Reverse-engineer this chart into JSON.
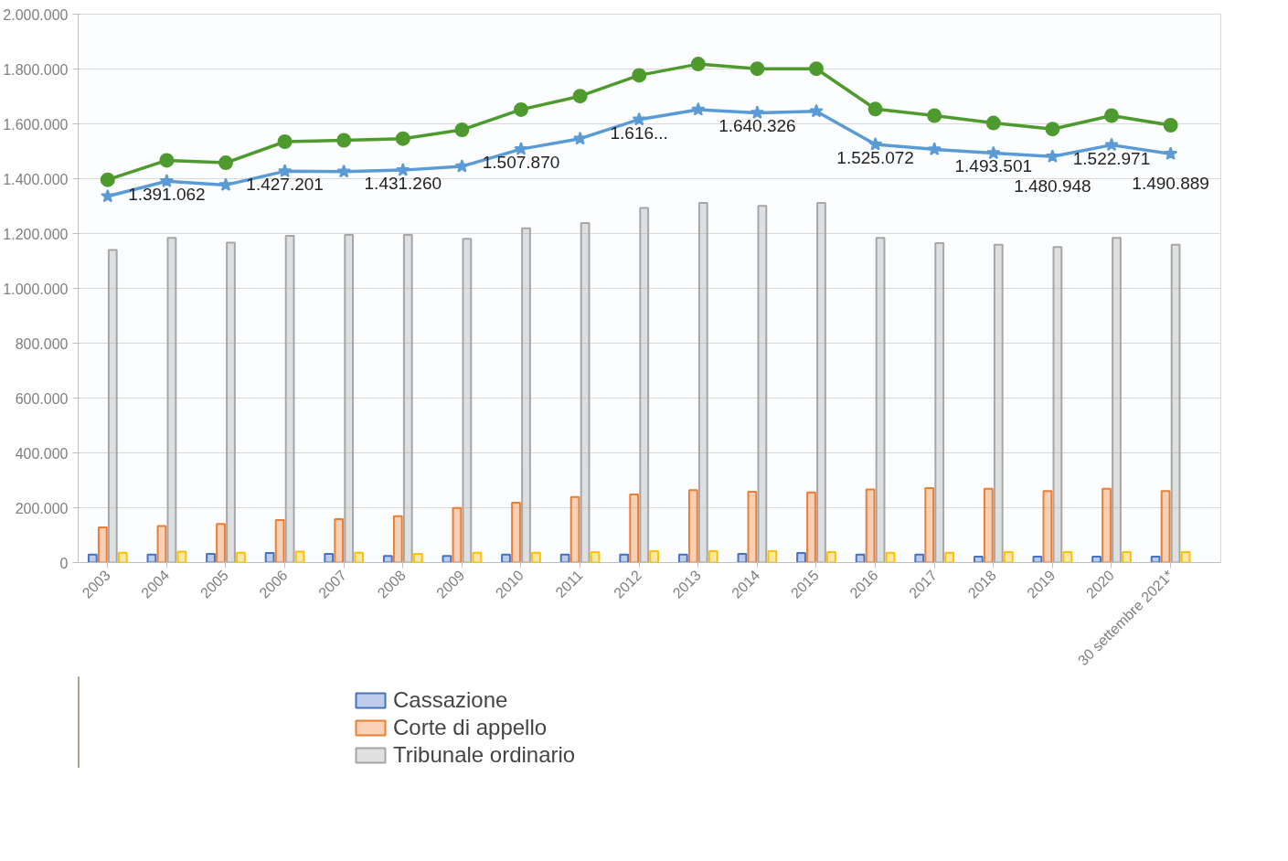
{
  "chart_data": {
    "type": "bar",
    "categories": [
      "2003",
      "2004",
      "2005",
      "2006",
      "2007",
      "2008",
      "2009",
      "2010",
      "2011",
      "2012",
      "2013",
      "2014",
      "2015",
      "2016",
      "2017",
      "2018",
      "2019",
      "2020",
      "30 settembre 2021*"
    ],
    "series": [
      {
        "name": "Cassazione",
        "color": "#4472c4",
        "values": [
          29000,
          29000,
          32000,
          35000,
          32000,
          24000,
          24000,
          29000,
          29000,
          29000,
          29000,
          32000,
          35000,
          29000,
          29000,
          22000,
          22000,
          22000,
          22000
        ]
      },
      {
        "name": "Corte di appello",
        "color": "#ed7d31",
        "values": [
          128000,
          133000,
          141000,
          155000,
          158000,
          169000,
          199000,
          218000,
          239000,
          248000,
          264000,
          258000,
          256000,
          267000,
          272000,
          269000,
          261000,
          269000,
          261000
        ]
      },
      {
        "name": "Tribunale ordinario",
        "color": "#a6a6a6",
        "values": [
          1140000,
          1184000,
          1167000,
          1192000,
          1195000,
          1195000,
          1181000,
          1219000,
          1238000,
          1293000,
          1312000,
          1301000,
          1312000,
          1184000,
          1165000,
          1159000,
          1151000,
          1184000,
          1159000
        ]
      },
      {
        "color": "#ffc000",
        "values": [
          36000,
          40000,
          36000,
          40000,
          36000,
          32000,
          36000,
          36000,
          38000,
          42000,
          42000,
          42000,
          38000,
          36000,
          36000,
          38000,
          38000,
          38000,
          38000
        ]
      },
      {
        "type": "line",
        "color": "#5b9bd5",
        "marker": "star",
        "values": [
          1336000,
          1391062,
          1377000,
          1427201,
          1426000,
          1431260,
          1445000,
          1507870,
          1546000,
          1616000,
          1652000,
          1640326,
          1646000,
          1525072,
          1507000,
          1493501,
          1480948,
          1522971,
          1490889
        ],
        "value_labels": [
          null,
          "1.391.062",
          null,
          "1.427.201",
          null,
          "1.431.260",
          null,
          "1.507.870",
          null,
          "1.616...",
          null,
          "1.640.326",
          null,
          "1.525.072",
          null,
          "1.493.501",
          "1.480.948",
          "1.522.971",
          "1.490.889"
        ]
      },
      {
        "type": "line",
        "color": "#4e9a2e",
        "marker": "circle",
        "values": [
          1396000,
          1467000,
          1458000,
          1535000,
          1540000,
          1546000,
          1578000,
          1652000,
          1701000,
          1777000,
          1818000,
          1801000,
          1801000,
          1654000,
          1630000,
          1603000,
          1581000,
          1630000,
          1595000
        ]
      }
    ],
    "ylim": [
      0,
      2000000
    ],
    "yticks": [
      {
        "value": 0,
        "label": "0"
      },
      {
        "value": 200000,
        "label": "200.000"
      },
      {
        "value": 400000,
        "label": "400.000"
      },
      {
        "value": 600000,
        "label": "600.000"
      },
      {
        "value": 800000,
        "label": "800.000"
      },
      {
        "value": 1000000,
        "label": "1.000.000"
      },
      {
        "value": 1200000,
        "label": "1.200.000"
      },
      {
        "value": 1400000,
        "label": "1.400.000"
      },
      {
        "value": 1600000,
        "label": "1.600.000"
      },
      {
        "value": 1800000,
        "label": "1.800.000"
      },
      {
        "value": 2000000,
        "label": "2.000.000"
      }
    ],
    "grid": "y",
    "legend": "bottom"
  }
}
